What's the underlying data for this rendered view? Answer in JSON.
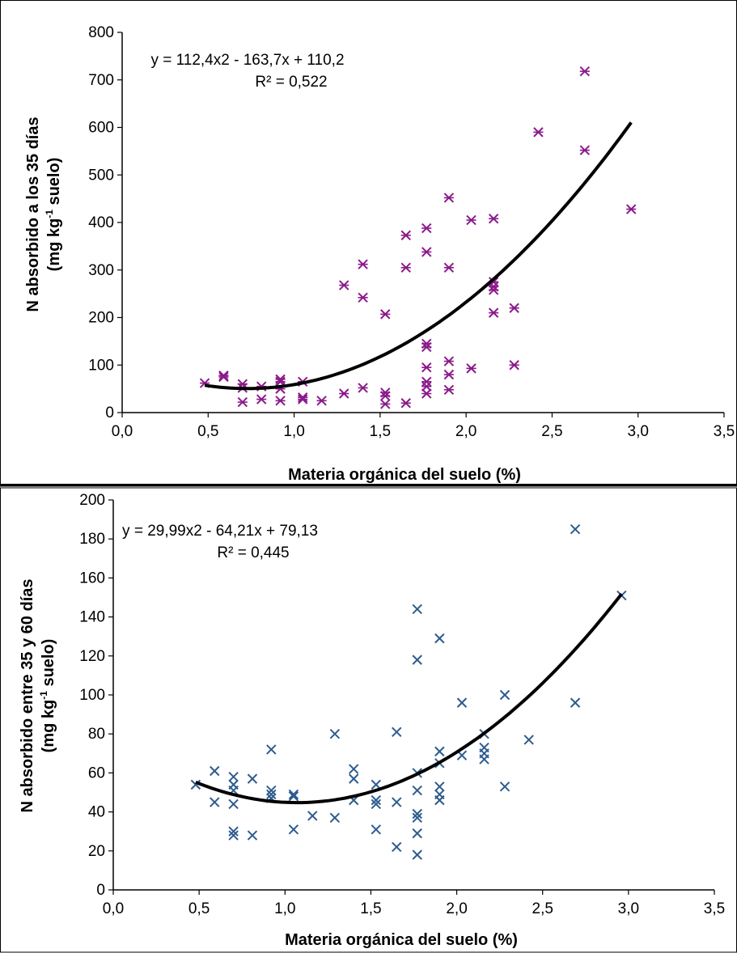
{
  "chart_data": [
    {
      "type": "scatter",
      "xlabel": "Materia orgánica del suelo (%)",
      "ylabel_line1": "N absorbido a los 35 días",
      "ylabel_line2": "(mg kg-1 suelo)",
      "xlim": [
        0,
        3.5
      ],
      "ylim": [
        0,
        800
      ],
      "x_ticks": [
        "0,0",
        "0,5",
        "1,0",
        "1,5",
        "2,0",
        "2,5",
        "3,0",
        "3,5"
      ],
      "y_ticks": [
        "0",
        "100",
        "200",
        "300",
        "400",
        "500",
        "600",
        "700",
        "800"
      ],
      "equation": "y = 112,4x2 - 163,7x + 110,2",
      "r2": "R² = 0,522",
      "marker": "asterisk",
      "color": "#8B1A8B",
      "trendline": {
        "type": "polynomial",
        "coefficients": [
          112.4,
          -163.7,
          110.2
        ],
        "x_range": [
          0.48,
          2.96
        ]
      },
      "points": [
        [
          0.48,
          62
        ],
        [
          0.59,
          78
        ],
        [
          0.59,
          75
        ],
        [
          0.7,
          60
        ],
        [
          0.7,
          52
        ],
        [
          0.7,
          22
        ],
        [
          0.81,
          55
        ],
        [
          0.81,
          28
        ],
        [
          0.92,
          70
        ],
        [
          0.92,
          65
        ],
        [
          0.92,
          50
        ],
        [
          0.92,
          25
        ],
        [
          1.05,
          65
        ],
        [
          1.05,
          32
        ],
        [
          1.05,
          28
        ],
        [
          1.16,
          25
        ],
        [
          1.29,
          268
        ],
        [
          1.29,
          40
        ],
        [
          1.4,
          312
        ],
        [
          1.4,
          242
        ],
        [
          1.4,
          52
        ],
        [
          1.53,
          207
        ],
        [
          1.53,
          42
        ],
        [
          1.53,
          35
        ],
        [
          1.53,
          18
        ],
        [
          1.65,
          373
        ],
        [
          1.65,
          305
        ],
        [
          1.65,
          20
        ],
        [
          1.77,
          388
        ],
        [
          1.77,
          338
        ],
        [
          1.77,
          145
        ],
        [
          1.77,
          138
        ],
        [
          1.77,
          95
        ],
        [
          1.77,
          65
        ],
        [
          1.77,
          55
        ],
        [
          1.77,
          40
        ],
        [
          1.9,
          452
        ],
        [
          1.9,
          305
        ],
        [
          1.9,
          108
        ],
        [
          1.9,
          80
        ],
        [
          1.9,
          48
        ],
        [
          2.03,
          405
        ],
        [
          2.03,
          93
        ],
        [
          2.16,
          408
        ],
        [
          2.16,
          275
        ],
        [
          2.16,
          265
        ],
        [
          2.16,
          258
        ],
        [
          2.16,
          210
        ],
        [
          2.28,
          220
        ],
        [
          2.28,
          100
        ],
        [
          2.42,
          590
        ],
        [
          2.69,
          718
        ],
        [
          2.69,
          552
        ],
        [
          2.96,
          428
        ]
      ]
    },
    {
      "type": "scatter",
      "xlabel": "Materia orgánica del suelo  (%)",
      "ylabel_line1": "N absorbido entre 35 y 60 días",
      "ylabel_line2": "(mg kg-1 suelo)",
      "xlim": [
        0,
        3.5
      ],
      "ylim": [
        0,
        200
      ],
      "x_ticks": [
        "0,0",
        "0,5",
        "1,0",
        "1,5",
        "2,0",
        "2,5",
        "3,0",
        "3,5"
      ],
      "y_ticks": [
        "0",
        "20",
        "40",
        "60",
        "80",
        "100",
        "120",
        "140",
        "160",
        "180",
        "200"
      ],
      "equation": "y = 29,99x2 - 64,21x + 79,13",
      "r2": "R² = 0,445",
      "marker": "x",
      "color": "#2E5C8E",
      "trendline": {
        "type": "polynomial",
        "coefficients": [
          29.99,
          -64.21,
          79.13
        ],
        "x_range": [
          0.48,
          2.96
        ]
      },
      "points": [
        [
          0.48,
          54
        ],
        [
          0.59,
          61
        ],
        [
          0.59,
          45
        ],
        [
          0.7,
          58
        ],
        [
          0.7,
          54
        ],
        [
          0.7,
          51
        ],
        [
          0.7,
          44
        ],
        [
          0.7,
          30
        ],
        [
          0.7,
          28
        ],
        [
          0.81,
          57
        ],
        [
          0.81,
          28
        ],
        [
          0.92,
          72
        ],
        [
          0.92,
          51
        ],
        [
          0.92,
          49
        ],
        [
          0.92,
          47
        ],
        [
          1.05,
          49
        ],
        [
          1.05,
          48
        ],
        [
          1.05,
          31
        ],
        [
          1.16,
          38
        ],
        [
          1.29,
          80
        ],
        [
          1.29,
          37
        ],
        [
          1.4,
          62
        ],
        [
          1.4,
          57
        ],
        [
          1.4,
          46
        ],
        [
          1.53,
          54
        ],
        [
          1.53,
          46
        ],
        [
          1.53,
          44
        ],
        [
          1.53,
          31
        ],
        [
          1.65,
          81
        ],
        [
          1.65,
          45
        ],
        [
          1.65,
          22
        ],
        [
          1.77,
          144
        ],
        [
          1.77,
          118
        ],
        [
          1.77,
          60
        ],
        [
          1.77,
          51
        ],
        [
          1.77,
          39
        ],
        [
          1.77,
          37
        ],
        [
          1.77,
          29
        ],
        [
          1.77,
          18
        ],
        [
          1.9,
          129
        ],
        [
          1.9,
          71
        ],
        [
          1.9,
          65
        ],
        [
          1.9,
          53
        ],
        [
          1.9,
          49
        ],
        [
          1.9,
          46
        ],
        [
          2.03,
          96
        ],
        [
          2.03,
          69
        ],
        [
          2.16,
          80
        ],
        [
          2.16,
          73
        ],
        [
          2.16,
          70
        ],
        [
          2.16,
          67
        ],
        [
          2.28,
          100
        ],
        [
          2.28,
          53
        ],
        [
          2.42,
          77
        ],
        [
          2.69,
          185
        ],
        [
          2.69,
          96
        ],
        [
          2.96,
          151
        ]
      ]
    }
  ]
}
